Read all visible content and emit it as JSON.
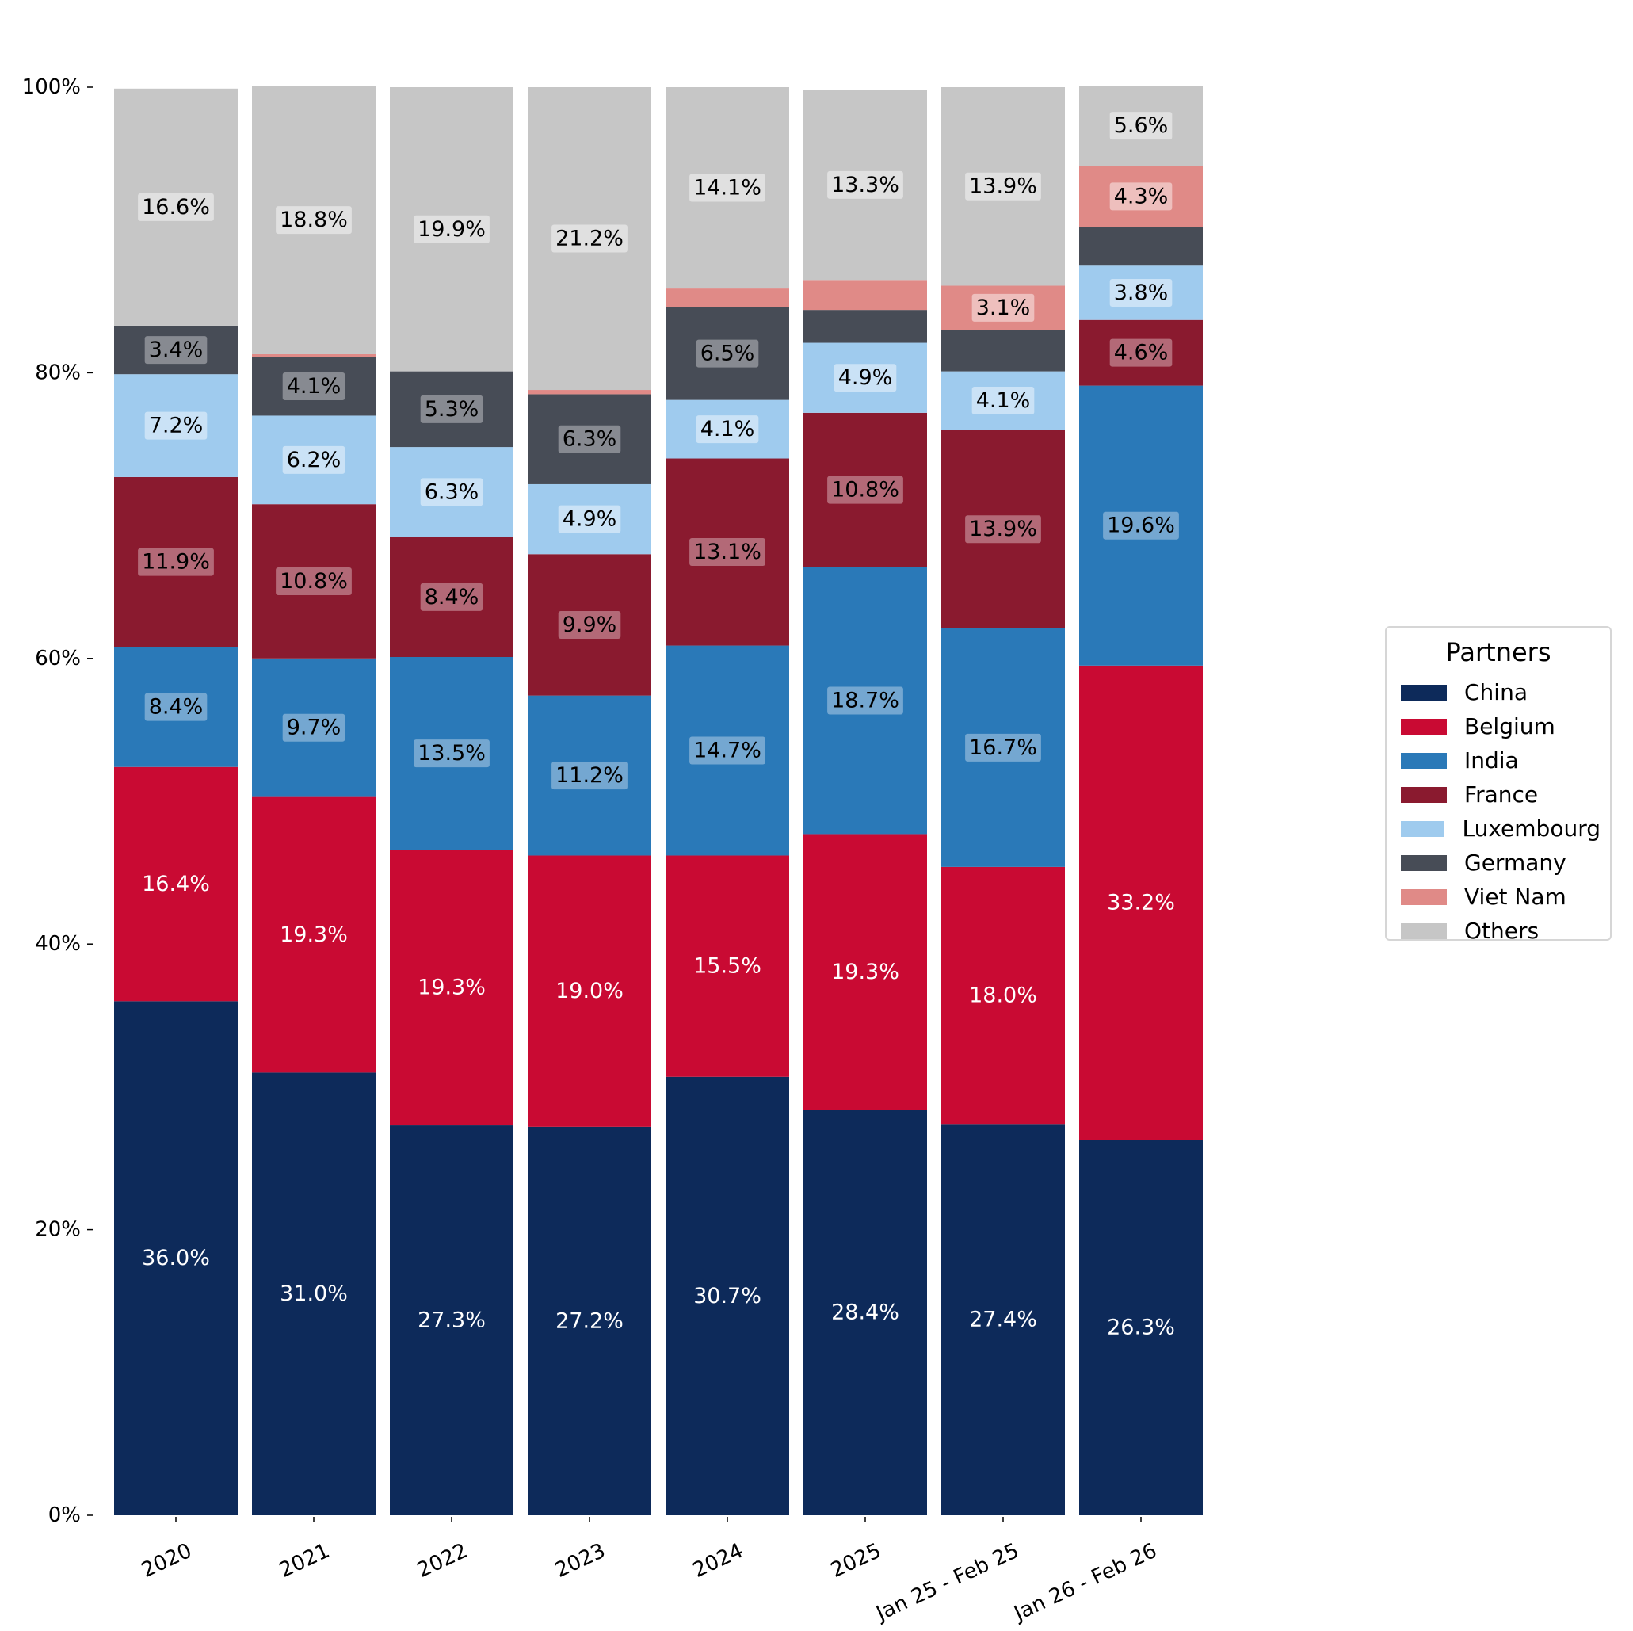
{
  "chart_data": {
    "type": "bar",
    "stacked": true,
    "categories": [
      "2020",
      "2021",
      "2022",
      "2023",
      "2024",
      "2025",
      "Jan 25 - Feb 25",
      "Jan 26 - Feb 26"
    ],
    "series": [
      {
        "name": "China",
        "color": "#0d2a5a",
        "values": [
          36.0,
          31.0,
          27.3,
          27.2,
          30.7,
          28.4,
          27.4,
          26.3
        ],
        "labels": [
          "36.0%",
          "31.0%",
          "27.3%",
          "27.2%",
          "30.7%",
          "28.4%",
          "27.4%",
          "26.3%"
        ]
      },
      {
        "name": "Belgium",
        "color": "#c90a33",
        "values": [
          16.4,
          19.3,
          19.3,
          19.0,
          15.5,
          19.3,
          18.0,
          33.2
        ],
        "labels": [
          "16.4%",
          "19.3%",
          "19.3%",
          "19.0%",
          "15.5%",
          "19.3%",
          "18.0%",
          "33.2%"
        ]
      },
      {
        "name": "India",
        "color": "#2a79b8",
        "values": [
          8.4,
          9.7,
          13.5,
          11.2,
          14.7,
          18.7,
          16.7,
          19.6
        ],
        "labels": [
          "8.4%",
          "9.7%",
          "13.5%",
          "11.2%",
          "14.7%",
          "18.7%",
          "16.7%",
          "19.6%"
        ]
      },
      {
        "name": "France",
        "color": "#8a1a2f",
        "values": [
          11.9,
          10.8,
          8.4,
          9.9,
          13.1,
          10.8,
          13.9,
          4.6
        ],
        "labels": [
          "11.9%",
          "10.8%",
          "8.4%",
          "9.9%",
          "13.1%",
          "10.8%",
          "13.9%",
          "4.6%"
        ]
      },
      {
        "name": "Luxembourg",
        "color": "#9fcbee",
        "values": [
          7.2,
          6.2,
          6.3,
          4.9,
          4.1,
          4.9,
          4.1,
          3.8
        ],
        "labels": [
          "7.2%",
          "6.2%",
          "6.3%",
          "4.9%",
          "4.1%",
          "4.9%",
          "4.1%",
          "3.8%"
        ]
      },
      {
        "name": "Germany",
        "color": "#474c56",
        "values": [
          3.4,
          4.1,
          5.3,
          6.3,
          6.5,
          2.3,
          2.9,
          2.7
        ],
        "labels": [
          "3.4%",
          "4.1%",
          "5.3%",
          "6.3%",
          "6.5%",
          "",
          "",
          ""
        ]
      },
      {
        "name": "Viet Nam",
        "color": "#e08a87",
        "values": [
          0.0,
          0.2,
          0.0,
          0.3,
          1.3,
          2.1,
          3.1,
          4.3
        ],
        "labels": [
          "",
          "",
          "",
          "",
          "",
          "",
          "3.1%",
          "4.3%"
        ]
      },
      {
        "name": "Others",
        "color": "#c6c6c6",
        "values": [
          16.6,
          18.8,
          19.9,
          21.2,
          14.1,
          13.3,
          13.9,
          5.6
        ],
        "labels": [
          "16.6%",
          "18.8%",
          "19.9%",
          "21.2%",
          "14.1%",
          "13.3%",
          "13.9%",
          "5.6%"
        ]
      }
    ],
    "ylim": [
      0,
      100
    ],
    "yticks": [
      "0%",
      "20%",
      "40%",
      "60%",
      "80%",
      "100%"
    ],
    "ytick_values": [
      0,
      20,
      40,
      60,
      80,
      100
    ],
    "legend": {
      "title": "Partners",
      "placement": "right"
    },
    "grid": false
  }
}
